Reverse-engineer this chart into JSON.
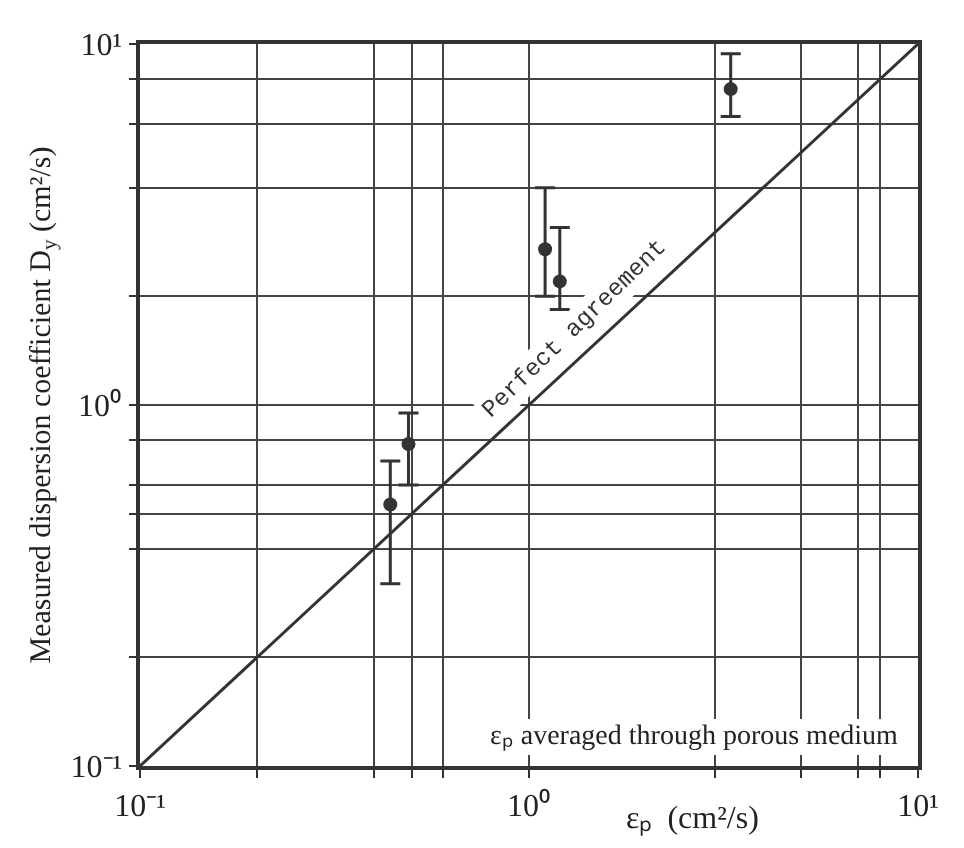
{
  "chart_data": {
    "type": "scatter",
    "xlabel": "εₚ  (cm²/s)",
    "ylabel": "Measured dispersion coefficient D$_{y}$ (cm²/s)",
    "annotations": [
      "εₚ averaged through porous medium"
    ],
    "series": [
      {
        "color": "#333333",
        "x": [
          0.44,
          0.49,
          1.1,
          1.2,
          3.3
        ],
        "values": [
          0.53,
          0.78,
          2.7,
          2.2,
          7.5
        ],
        "marker": "circle",
        "errors": [
          [
            0.32,
            0.7
          ],
          [
            0.6,
            0.95
          ],
          [
            2.0,
            4.0
          ],
          [
            1.84,
            3.1
          ],
          [
            6.3,
            9.4
          ]
        ]
      },
      {
        "type": "line",
        "name": "Perfect agreement",
        "color": "#333333",
        "x": [
          0.1,
          10
        ],
        "values": [
          0.1,
          10
        ]
      }
    ],
    "log": "xy",
    "line_style": "solid",
    "grid": true,
    "xlim": [
      0.1,
      10
    ],
    "ylim": [
      0.1,
      10
    ],
    "xticks": [
      {
        "value": 0.1,
        "label": "10⁻¹"
      },
      {
        "value": 0.2,
        "label": null
      },
      {
        "value": 0.4,
        "label": null
      },
      {
        "value": 0.5,
        "label": null
      },
      {
        "value": 0.6,
        "label": null
      },
      {
        "value": 1,
        "label": "10⁰"
      },
      {
        "value": 3,
        "label": null
      },
      {
        "value": 5,
        "label": null
      },
      {
        "value": 7,
        "label": null
      },
      {
        "value": 8,
        "label": null
      },
      {
        "value": 10,
        "label": "10¹"
      }
    ],
    "yticks": [
      {
        "value": 0.1,
        "label": "10⁻¹"
      },
      {
        "value": 0.2,
        "label": null
      },
      {
        "value": 0.4,
        "label": null
      },
      {
        "value": 0.5,
        "label": null
      },
      {
        "value": 0.6,
        "label": null
      },
      {
        "value": 0.8,
        "label": null
      },
      {
        "value": 1,
        "label": "10⁰"
      },
      {
        "value": 2,
        "label": null
      },
      {
        "value": 4,
        "label": null
      },
      {
        "value": 6,
        "label": null
      },
      {
        "value": 8,
        "label": null
      },
      {
        "value": 10,
        "label": "10¹"
      }
    ]
  }
}
